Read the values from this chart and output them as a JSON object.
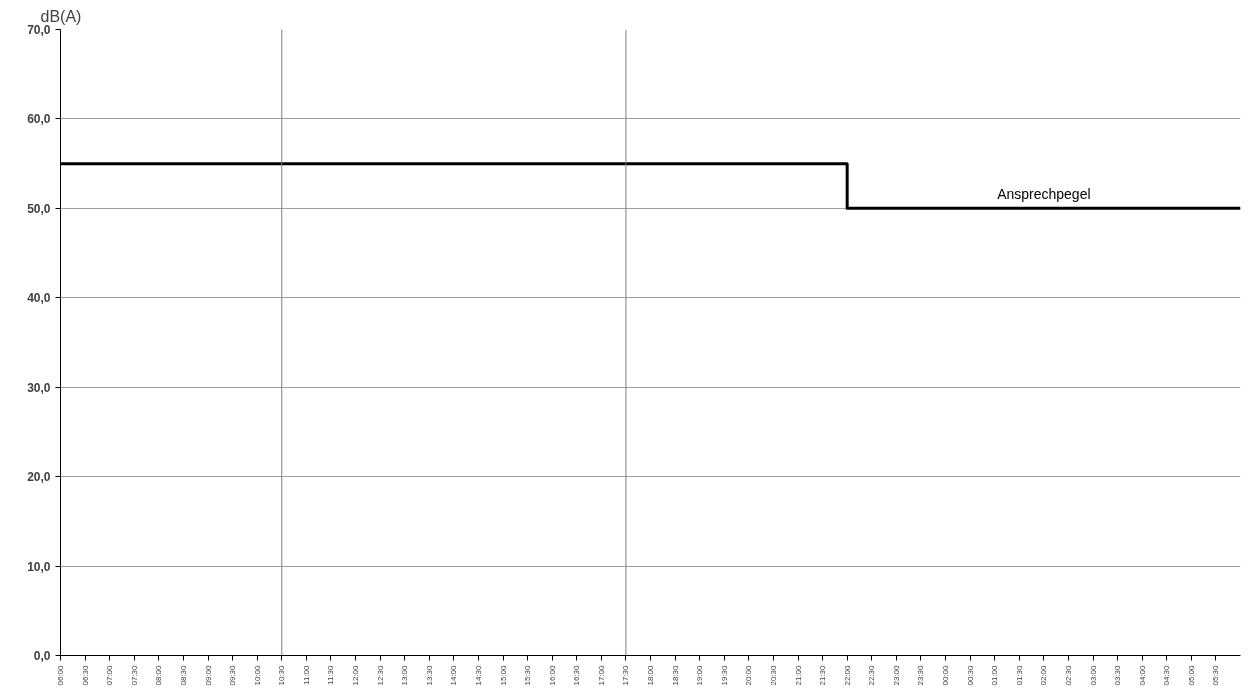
{
  "chart_data": {
    "type": "step",
    "ylabel": "dB(A)",
    "x": [
      "2000-01-01T06:00",
      "2000-01-01T22:00",
      "2000-01-02T06:00"
    ],
    "series": [
      {
        "name": "Ansprechpegel",
        "color": "#000000",
        "values": [
          55,
          50,
          50
        ]
      }
    ],
    "xlim": [
      "2000-01-01T06:00",
      "2000-01-02T06:00"
    ],
    "ylim": [
      0,
      70
    ],
    "yticks": [
      {
        "value": 0,
        "label": "0,0"
      },
      {
        "value": 10,
        "label": "10,0"
      },
      {
        "value": 20,
        "label": "20,0"
      },
      {
        "value": 30,
        "label": "30,0"
      },
      {
        "value": 40,
        "label": "40,0"
      },
      {
        "value": 50,
        "label": "50,0"
      },
      {
        "value": 60,
        "label": "60,0"
      },
      {
        "value": 70,
        "label": "70,0"
      }
    ],
    "xticks": [
      {
        "value": "2000-01-01T06:00",
        "label": "06:00"
      },
      {
        "value": "2000-01-01T06:30",
        "label": "06:30"
      },
      {
        "value": "2000-01-01T07:00",
        "label": "07:00"
      },
      {
        "value": "2000-01-01T07:30",
        "label": "07:30"
      },
      {
        "value": "2000-01-01T08:00",
        "label": "08:00"
      },
      {
        "value": "2000-01-01T08:30",
        "label": "08:30"
      },
      {
        "value": "2000-01-01T09:00",
        "label": "09:00"
      },
      {
        "value": "2000-01-01T09:30",
        "label": "09:30"
      },
      {
        "value": "2000-01-01T10:00",
        "label": "10:00"
      },
      {
        "value": "2000-01-01T10:30",
        "label": "10:30"
      },
      {
        "value": "2000-01-01T11:00",
        "label": "11:00"
      },
      {
        "value": "2000-01-01T11:30",
        "label": "11:30"
      },
      {
        "value": "2000-01-01T12:00",
        "label": "12:00"
      },
      {
        "value": "2000-01-01T12:30",
        "label": "12:30"
      },
      {
        "value": "2000-01-01T13:00",
        "label": "13:00"
      },
      {
        "value": "2000-01-01T13:30",
        "label": "13:30"
      },
      {
        "value": "2000-01-01T14:00",
        "label": "14:00"
      },
      {
        "value": "2000-01-01T14:30",
        "label": "14:30"
      },
      {
        "value": "2000-01-01T15:00",
        "label": "15:00"
      },
      {
        "value": "2000-01-01T15:30",
        "label": "15:30"
      },
      {
        "value": "2000-01-01T16:00",
        "label": "16:00"
      },
      {
        "value": "2000-01-01T16:30",
        "label": "16:30"
      },
      {
        "value": "2000-01-01T17:00",
        "label": "17:00"
      },
      {
        "value": "2000-01-01T17:30",
        "label": "17:30"
      },
      {
        "value": "2000-01-01T18:00",
        "label": "18:00"
      },
      {
        "value": "2000-01-01T18:30",
        "label": "18:30"
      },
      {
        "value": "2000-01-01T19:00",
        "label": "19:00"
      },
      {
        "value": "2000-01-01T19:30",
        "label": "19:30"
      },
      {
        "value": "2000-01-01T20:00",
        "label": "20:00"
      },
      {
        "value": "2000-01-01T20:30",
        "label": "20:30"
      },
      {
        "value": "2000-01-01T21:00",
        "label": "21:00"
      },
      {
        "value": "2000-01-01T21:30",
        "label": "21:30"
      },
      {
        "value": "2000-01-01T22:00",
        "label": "22:00"
      },
      {
        "value": "2000-01-01T22:30",
        "label": "22:30"
      },
      {
        "value": "2000-01-01T23:00",
        "label": "23:00"
      },
      {
        "value": "2000-01-01T23:30",
        "label": "23:30"
      },
      {
        "value": "2000-01-02T00:00",
        "label": "00:00"
      },
      {
        "value": "2000-01-02T00:30",
        "label": "00:30"
      },
      {
        "value": "2000-01-02T01:00",
        "label": "01:00"
      },
      {
        "value": "2000-01-02T01:30",
        "label": "01:30"
      },
      {
        "value": "2000-01-02T02:00",
        "label": "02:00"
      },
      {
        "value": "2000-01-02T02:30",
        "label": "02:30"
      },
      {
        "value": "2000-01-02T03:00",
        "label": "03:00"
      },
      {
        "value": "2000-01-02T03:30",
        "label": "03:30"
      },
      {
        "value": "2000-01-02T04:00",
        "label": "04:00"
      },
      {
        "value": "2000-01-02T04:30",
        "label": "04:30"
      },
      {
        "value": "2000-01-02T05:00",
        "label": "05:00"
      },
      {
        "value": "2000-01-02T05:30",
        "label": "05:30"
      }
    ],
    "grid": "y",
    "ref_lines": [
      {
        "axis": "x",
        "value": "2000-01-01T10:30",
        "color": "#808080"
      },
      {
        "axis": "x",
        "value": "2000-01-01T17:30",
        "color": "#808080"
      }
    ],
    "line_style": "solid"
  }
}
